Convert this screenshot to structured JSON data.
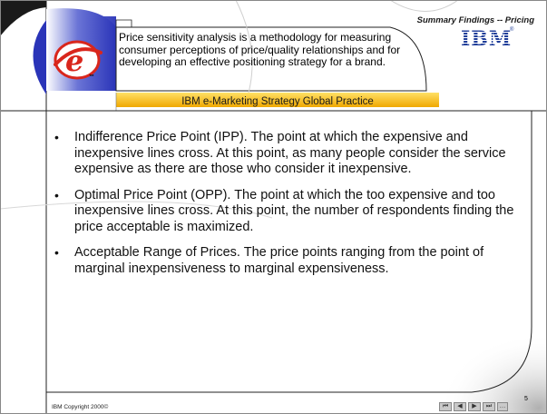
{
  "header": {
    "section_label": "Summary Findings -- Pricing",
    "brand_logo_text": "IBM",
    "brand_logo_mark": "®",
    "blurb": "Price sensitivity analysis is a methodology for measuring consumer perceptions of price/quality relationships and for developing an effective positioning strategy for a brand.",
    "e_logo_letter": "e",
    "e_logo_mark": "™",
    "banner": "IBM e-Marketing Strategy Global Practice"
  },
  "bullets": [
    {
      "text": "Indifference Price Point (IPP).  The point at which the expensive and inexpensive lines cross.  At this point, as many people consider the service expensive as there are those who consider it inexpensive."
    },
    {
      "text": "Optimal Price Point (OPP).  The point at which the too expensive and too inexpensive lines cross.  At this point, the number of respondents finding the price acceptable is maximized."
    },
    {
      "text": "Acceptable Range of Prices.  The price points ranging from the point of marginal inexpensiveness to marginal expensiveness."
    }
  ],
  "footer": {
    "copyright": "IBM Copyright 2000©",
    "page_number": "5",
    "nav": [
      {
        "icon": "first-slide-icon",
        "glyph": "⏮"
      },
      {
        "icon": "previous-slide-icon",
        "glyph": "◀"
      },
      {
        "icon": "next-slide-icon",
        "glyph": "▶"
      },
      {
        "icon": "last-slide-icon",
        "glyph": "⏭"
      },
      {
        "icon": "menu-icon",
        "glyph": "…"
      }
    ]
  },
  "colors": {
    "banner": "#f5b300",
    "banner_light": "#ffdd55",
    "logo_red": "#d9261c",
    "ibm_blue": "#1f3d99",
    "bezel_blue": "#4652c9"
  }
}
